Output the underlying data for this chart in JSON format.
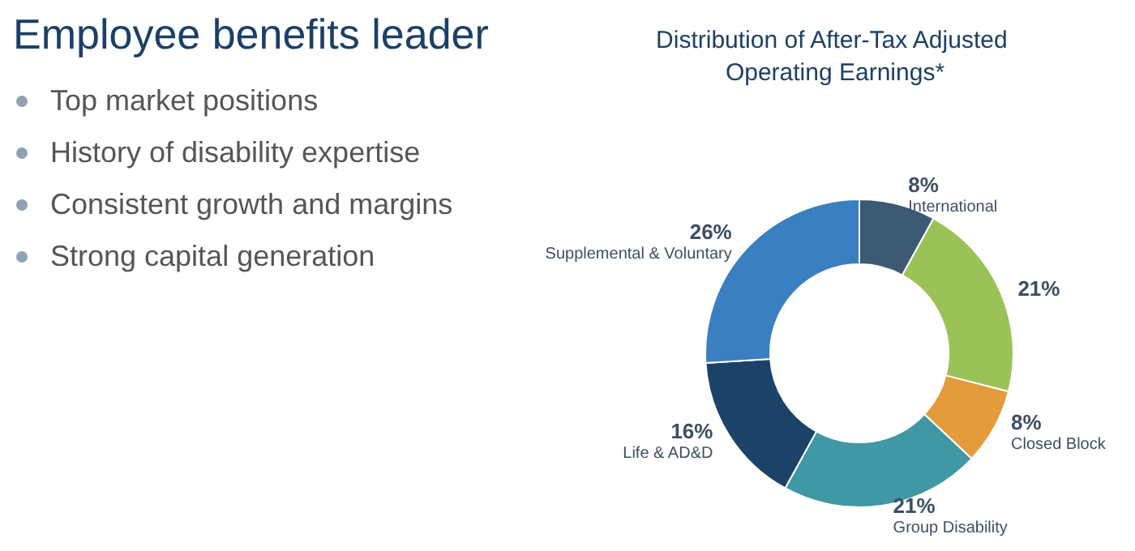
{
  "chart_data": [
    {
      "type": "other",
      "title": "Employee benefits leader",
      "annotations": [
        "Top market positions",
        "History of disability expertise",
        "Consistent growth and margins",
        "Strong capital generation"
      ]
    },
    {
      "type": "donut",
      "title": "Distribution of After-Tax Adjusted Operating Earnings*",
      "categories": [
        "International",
        null,
        "Closed Block",
        "Group Disability",
        "Life & AD&D",
        "Supplemental & Voluntary"
      ],
      "values": [
        8,
        21,
        8,
        21,
        16,
        26
      ],
      "colors": [
        "#3d5a74",
        "#9bc257",
        "#e39b3b",
        "#3f98a4",
        "#1c4268",
        "#3a7fc0"
      ],
      "value_labels": [
        "8%",
        "21%",
        "8%",
        "21%",
        "16%",
        "26%"
      ]
    }
  ]
}
